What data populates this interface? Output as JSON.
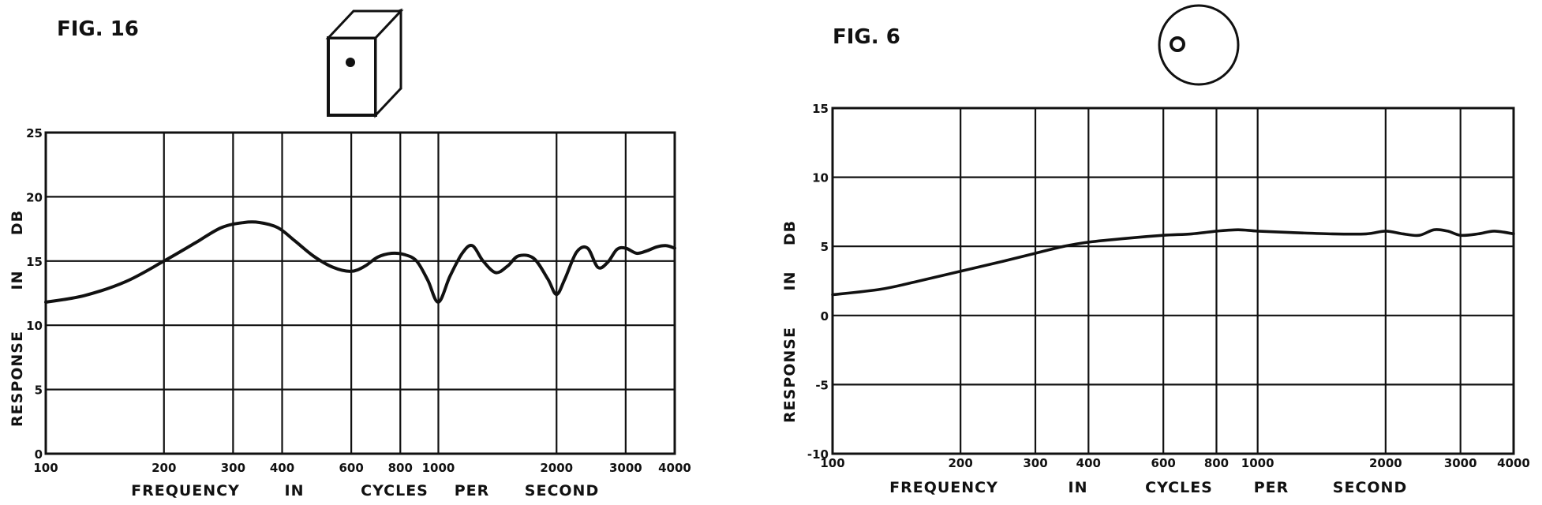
{
  "colors": {
    "ink": "#111111",
    "paper": "#ffffff"
  },
  "chart_data": [
    {
      "type": "line",
      "figure_label": "FIG. 16",
      "icon": "box-speaker-cabinet-icon",
      "xlabel_words": [
        "FREQUENCY",
        "IN",
        "CYCLES",
        "PER",
        "SECOND"
      ],
      "ylabel_words": [
        "RESPONSE",
        "IN",
        "DB"
      ],
      "x_scale": "log",
      "xlim": [
        100,
        4000
      ],
      "ylim": [
        0,
        25
      ],
      "x_ticks": [
        100,
        200,
        300,
        400,
        600,
        800,
        1000,
        2000,
        3000,
        4000
      ],
      "x_tick_labels": [
        "100",
        "200",
        "300",
        "400",
        "600",
        "800",
        "1000",
        "2000",
        "3000",
        "4000"
      ],
      "y_ticks": [
        0,
        5,
        10,
        15,
        20,
        25
      ],
      "y_tick_labels": [
        "0",
        "5",
        "10",
        "15",
        "20",
        "25"
      ],
      "grid": true,
      "series": [
        {
          "x": [
            100,
            125,
            160,
            200,
            240,
            280,
            320,
            350,
            390,
            430,
            480,
            540,
            600,
            650,
            700,
            760,
            820,
            880,
            940,
            1000,
            1070,
            1150,
            1220,
            1300,
            1400,
            1500,
            1600,
            1750,
            1900,
            2000,
            2100,
            2250,
            2400,
            2550,
            2700,
            2850,
            3000,
            3200,
            3400,
            3600,
            3800,
            4000
          ],
          "y": [
            11.8,
            12.3,
            13.4,
            15.0,
            16.4,
            17.6,
            18.0,
            18.0,
            17.6,
            16.6,
            15.4,
            14.5,
            14.2,
            14.6,
            15.3,
            15.6,
            15.5,
            15.0,
            13.5,
            11.8,
            13.8,
            15.6,
            16.2,
            15.0,
            14.1,
            14.6,
            15.4,
            15.2,
            13.6,
            12.4,
            13.6,
            15.7,
            16.0,
            14.5,
            14.9,
            15.9,
            16.0,
            15.6,
            15.8,
            16.1,
            16.2,
            16.0
          ]
        }
      ]
    },
    {
      "type": "line",
      "figure_label": "FIG. 6",
      "icon": "spherical-speaker-icon",
      "xlabel_words": [
        "FREQUENCY",
        "IN",
        "CYCLES",
        "PER",
        "SECOND"
      ],
      "ylabel_words": [
        "RESPONSE",
        "IN",
        "DB"
      ],
      "x_scale": "log",
      "xlim": [
        100,
        4000
      ],
      "ylim": [
        -10,
        15
      ],
      "x_ticks": [
        100,
        200,
        300,
        400,
        600,
        800,
        1000,
        2000,
        3000,
        4000
      ],
      "x_tick_labels": [
        "100",
        "200",
        "300",
        "400",
        "600",
        "800",
        "1000",
        "2000",
        "3000",
        "4000"
      ],
      "y_ticks": [
        -10,
        -5,
        0,
        5,
        10,
        15
      ],
      "y_tick_labels": [
        "-10",
        "-5",
        "0",
        "5",
        "10",
        "15"
      ],
      "grid": true,
      "series": [
        {
          "x": [
            100,
            130,
            160,
            200,
            250,
            300,
            350,
            400,
            500,
            600,
            700,
            800,
            900,
            1000,
            1200,
            1500,
            1800,
            2000,
            2200,
            2400,
            2600,
            2800,
            3000,
            3300,
            3600,
            4000
          ],
          "y": [
            1.5,
            1.9,
            2.5,
            3.2,
            3.9,
            4.5,
            5.0,
            5.3,
            5.6,
            5.8,
            5.9,
            6.1,
            6.2,
            6.1,
            6.0,
            5.9,
            5.9,
            6.1,
            5.9,
            5.8,
            6.2,
            6.1,
            5.8,
            5.9,
            6.1,
            5.9
          ]
        }
      ]
    }
  ]
}
